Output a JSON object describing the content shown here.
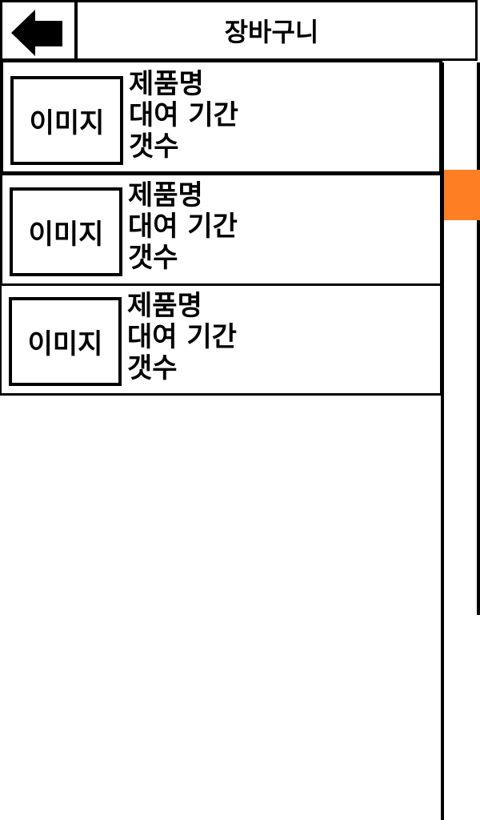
{
  "header": {
    "title": "장바구니",
    "back_icon": "back-arrow-icon"
  },
  "cart": {
    "items": [
      {
        "image_label": "이미지",
        "product_name": "제품명",
        "rental_period": "대여 기간",
        "quantity": "갯수"
      },
      {
        "image_label": "이미지",
        "product_name": "제품명",
        "rental_period": "대여 기간",
        "quantity": "갯수"
      },
      {
        "image_label": "이미지",
        "product_name": "제품명",
        "rental_period": "대여 기간",
        "quantity": "갯수"
      }
    ]
  },
  "colors": {
    "scroll_thumb": "#fd7e23",
    "border": "#000000",
    "background": "#ffffff"
  }
}
